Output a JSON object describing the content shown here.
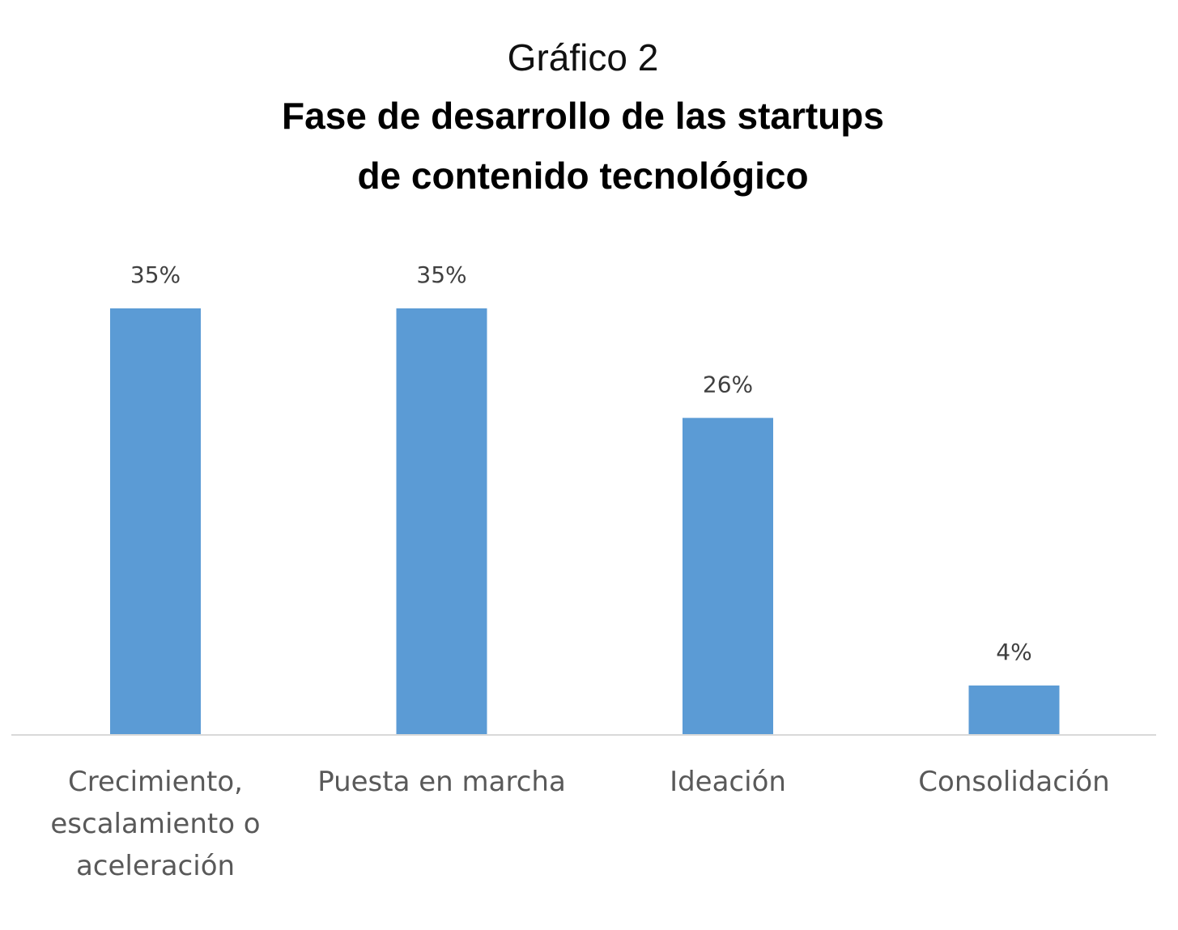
{
  "figure_label": "Gráfico 2",
  "title_lines": [
    "Fase de desarrollo  de las startups",
    "de contenido tecnológico"
  ],
  "colors": {
    "bar": "#5b9bd5",
    "axis": "#d9d9d9",
    "tick_text": "#595959",
    "data_label_text": "#404040"
  },
  "chart_data": {
    "type": "bar",
    "title": "Fase de desarrollo  de las startups de contenido tecnológico",
    "categories": [
      [
        "Crecimiento,",
        "escalamiento o",
        "aceleración"
      ],
      [
        "Puesta en marcha"
      ],
      [
        "Ideación"
      ],
      [
        "Consolidación"
      ]
    ],
    "values": [
      35,
      35,
      26,
      4
    ],
    "data_labels": [
      "35%",
      "35%",
      "26%",
      "4%"
    ],
    "unit": "%",
    "xlabel": "",
    "ylabel": "",
    "ylim": [
      0,
      35
    ],
    "grid": false,
    "legend": "none"
  }
}
